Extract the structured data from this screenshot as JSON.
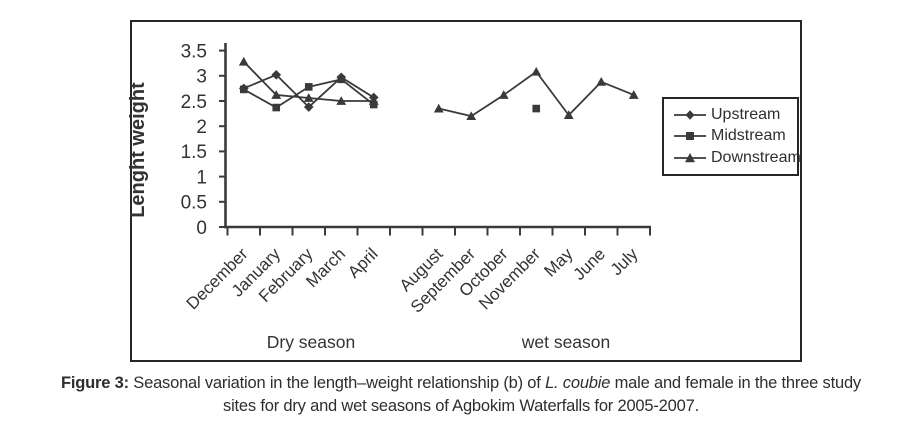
{
  "chart_data": {
    "type": "line",
    "title": "",
    "xlabel": "",
    "ylabel": "Lenght weight",
    "ylim": [
      0,
      3.5
    ],
    "yticks": [
      0,
      0.5,
      1,
      1.5,
      2,
      2.5,
      3,
      3.5
    ],
    "grid": false,
    "legend_position": "right",
    "categories": [
      "December",
      "January",
      "February",
      "March",
      "April",
      "",
      "August",
      "September",
      "October",
      "November",
      "May",
      "June",
      "July"
    ],
    "season_labels": {
      "dry": "Dry season",
      "wet": "wet season"
    },
    "series": [
      {
        "name": "Upstream",
        "marker": "diamond",
        "values": [
          2.75,
          3.02,
          2.38,
          2.97,
          2.57,
          null,
          null,
          null,
          null,
          null,
          null,
          null,
          null
        ]
      },
      {
        "name": "Midstream",
        "marker": "square",
        "values": [
          2.73,
          2.37,
          2.78,
          2.93,
          2.43,
          null,
          null,
          null,
          null,
          2.35,
          null,
          null,
          null
        ]
      },
      {
        "name": "Downstream",
        "marker": "triangle",
        "values": [
          3.28,
          2.62,
          2.56,
          2.5,
          2.5,
          null,
          2.35,
          2.2,
          2.62,
          3.08,
          2.22,
          2.88,
          2.62
        ]
      }
    ],
    "ink_color": "#3a3a3a",
    "text_color": "#333333"
  },
  "caption": {
    "label": "Figure 3:",
    "line1_mid": " Seasonal variation in the length–weight relationship (b) of ",
    "species": "L. coubie",
    "line1_end": " male and female in the three study",
    "line2": "sites for dry and wet seasons of Agbokim Waterfalls for 2005-2007."
  }
}
